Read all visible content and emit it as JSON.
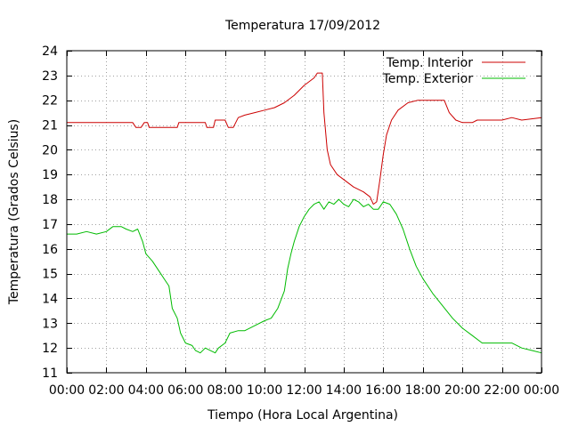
{
  "chart_data": {
    "type": "line",
    "title": "Temperatura 17/09/2012",
    "xlabel": "Tiempo (Hora Local Argentina)",
    "ylabel": "Temperatura (Grados Celsius)",
    "xlim": [
      "00:00",
      "24:00"
    ],
    "ylim": [
      11,
      24
    ],
    "x_tick_labels": [
      "00:00",
      "02:00",
      "04:00",
      "06:00",
      "08:00",
      "10:00",
      "12:00",
      "14:00",
      "16:00",
      "18:00",
      "20:00",
      "22:00",
      "00:00"
    ],
    "y_tick_labels": [
      "11",
      "12",
      "13",
      "14",
      "15",
      "16",
      "17",
      "18",
      "19",
      "20",
      "21",
      "22",
      "23",
      "24"
    ],
    "grid": true,
    "legend_position": "top-right",
    "series": [
      {
        "name": "Temp. Interior",
        "color": "#cc0000",
        "points": [
          [
            "00:00",
            21.1
          ],
          [
            "01:00",
            21.1
          ],
          [
            "02:00",
            21.1
          ],
          [
            "03:00",
            21.1
          ],
          [
            "03:20",
            21.1
          ],
          [
            "03:30",
            20.9
          ],
          [
            "03:45",
            20.9
          ],
          [
            "03:55",
            21.1
          ],
          [
            "04:05",
            21.1
          ],
          [
            "04:10",
            20.9
          ],
          [
            "05:00",
            20.9
          ],
          [
            "05:35",
            20.9
          ],
          [
            "05:40",
            21.1
          ],
          [
            "06:30",
            21.1
          ],
          [
            "07:00",
            21.1
          ],
          [
            "07:05",
            20.9
          ],
          [
            "07:25",
            20.9
          ],
          [
            "07:30",
            21.2
          ],
          [
            "08:00",
            21.2
          ],
          [
            "08:10",
            20.9
          ],
          [
            "08:25",
            20.9
          ],
          [
            "08:40",
            21.3
          ],
          [
            "09:00",
            21.4
          ],
          [
            "09:30",
            21.5
          ],
          [
            "10:00",
            21.6
          ],
          [
            "10:30",
            21.7
          ],
          [
            "11:00",
            21.9
          ],
          [
            "11:30",
            22.2
          ],
          [
            "12:00",
            22.6
          ],
          [
            "12:30",
            22.9
          ],
          [
            "12:40",
            23.1
          ],
          [
            "12:55",
            23.1
          ],
          [
            "13:00",
            21.5
          ],
          [
            "13:10",
            20.0
          ],
          [
            "13:20",
            19.4
          ],
          [
            "13:40",
            19.0
          ],
          [
            "14:00",
            18.8
          ],
          [
            "14:30",
            18.5
          ],
          [
            "15:00",
            18.3
          ],
          [
            "15:20",
            18.1
          ],
          [
            "15:30",
            17.8
          ],
          [
            "15:40",
            17.9
          ],
          [
            "15:50",
            18.8
          ],
          [
            "16:00",
            19.8
          ],
          [
            "16:10",
            20.6
          ],
          [
            "16:25",
            21.2
          ],
          [
            "16:45",
            21.6
          ],
          [
            "17:15",
            21.9
          ],
          [
            "17:45",
            22.0
          ],
          [
            "18:30",
            22.0
          ],
          [
            "19:05",
            22.0
          ],
          [
            "19:20",
            21.5
          ],
          [
            "19:40",
            21.2
          ],
          [
            "20:00",
            21.1
          ],
          [
            "20:30",
            21.1
          ],
          [
            "20:45",
            21.2
          ],
          [
            "21:30",
            21.2
          ],
          [
            "22:00",
            21.2
          ],
          [
            "22:30",
            21.3
          ],
          [
            "23:00",
            21.2
          ],
          [
            "24:00",
            21.3
          ]
        ]
      },
      {
        "name": "Temp. Exterior",
        "color": "#00bb00",
        "points": [
          [
            "00:00",
            16.6
          ],
          [
            "00:30",
            16.6
          ],
          [
            "01:00",
            16.7
          ],
          [
            "01:30",
            16.6
          ],
          [
            "02:00",
            16.7
          ],
          [
            "02:20",
            16.9
          ],
          [
            "02:45",
            16.9
          ],
          [
            "03:00",
            16.8
          ],
          [
            "03:20",
            16.7
          ],
          [
            "03:35",
            16.8
          ],
          [
            "03:50",
            16.3
          ],
          [
            "04:00",
            15.8
          ],
          [
            "04:20",
            15.5
          ],
          [
            "04:40",
            15.1
          ],
          [
            "05:00",
            14.7
          ],
          [
            "05:10",
            14.5
          ],
          [
            "05:20",
            13.6
          ],
          [
            "05:35",
            13.2
          ],
          [
            "05:45",
            12.6
          ],
          [
            "06:00",
            12.2
          ],
          [
            "06:20",
            12.1
          ],
          [
            "06:30",
            11.9
          ],
          [
            "06:45",
            11.8
          ],
          [
            "07:00",
            12.0
          ],
          [
            "07:15",
            11.9
          ],
          [
            "07:30",
            11.8
          ],
          [
            "07:40",
            12.0
          ],
          [
            "08:00",
            12.2
          ],
          [
            "08:15",
            12.6
          ],
          [
            "08:40",
            12.7
          ],
          [
            "09:00",
            12.7
          ],
          [
            "09:30",
            12.9
          ],
          [
            "10:00",
            13.1
          ],
          [
            "10:20",
            13.2
          ],
          [
            "10:40",
            13.6
          ],
          [
            "11:00",
            14.3
          ],
          [
            "11:10",
            15.2
          ],
          [
            "11:20",
            15.8
          ],
          [
            "11:30",
            16.3
          ],
          [
            "11:45",
            16.9
          ],
          [
            "12:00",
            17.3
          ],
          [
            "12:15",
            17.6
          ],
          [
            "12:30",
            17.8
          ],
          [
            "12:45",
            17.9
          ],
          [
            "13:00",
            17.6
          ],
          [
            "13:15",
            17.9
          ],
          [
            "13:30",
            17.8
          ],
          [
            "13:45",
            18.0
          ],
          [
            "14:00",
            17.8
          ],
          [
            "14:15",
            17.7
          ],
          [
            "14:30",
            18.0
          ],
          [
            "14:45",
            17.9
          ],
          [
            "15:00",
            17.7
          ],
          [
            "15:15",
            17.8
          ],
          [
            "15:30",
            17.6
          ],
          [
            "15:45",
            17.6
          ],
          [
            "16:00",
            17.9
          ],
          [
            "16:20",
            17.8
          ],
          [
            "16:40",
            17.4
          ],
          [
            "17:00",
            16.8
          ],
          [
            "17:20",
            16.0
          ],
          [
            "17:40",
            15.3
          ],
          [
            "18:00",
            14.8
          ],
          [
            "18:30",
            14.2
          ],
          [
            "19:00",
            13.7
          ],
          [
            "19:30",
            13.2
          ],
          [
            "20:00",
            12.8
          ],
          [
            "20:30",
            12.5
          ],
          [
            "21:00",
            12.2
          ],
          [
            "21:30",
            12.2
          ],
          [
            "22:00",
            12.2
          ],
          [
            "22:30",
            12.2
          ],
          [
            "23:00",
            12.0
          ],
          [
            "23:30",
            11.9
          ],
          [
            "24:00",
            11.8
          ]
        ]
      }
    ]
  }
}
